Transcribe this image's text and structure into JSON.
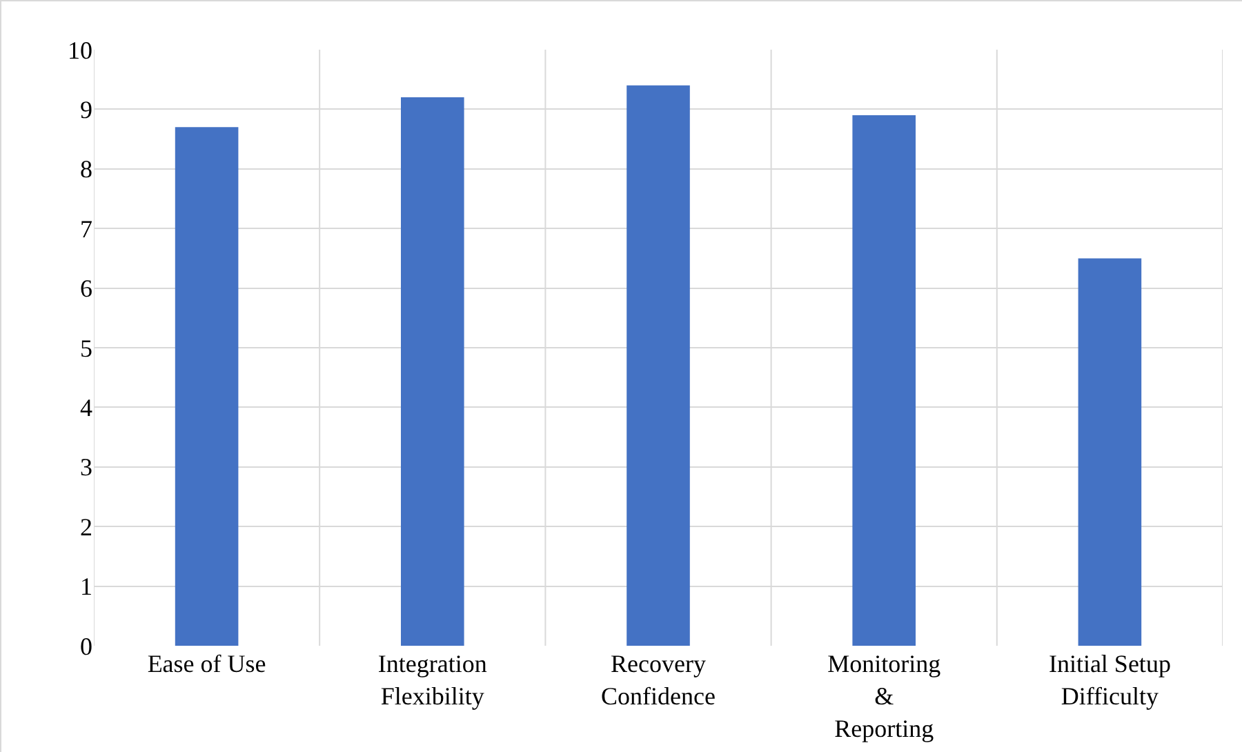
{
  "chart_data": {
    "type": "bar",
    "categories": [
      "Ease of Use",
      "Integration Flexibility",
      "Recovery Confidence",
      "Monitoring & Reporting",
      "Initial Setup Difficulty"
    ],
    "values": [
      8.7,
      9.2,
      9.4,
      8.9,
      6.5
    ],
    "color": "#4472c4",
    "ylim": [
      0,
      10
    ],
    "yticks": [
      0,
      1,
      2,
      3,
      4,
      5,
      6,
      7,
      8,
      9,
      10
    ],
    "grid": true
  }
}
